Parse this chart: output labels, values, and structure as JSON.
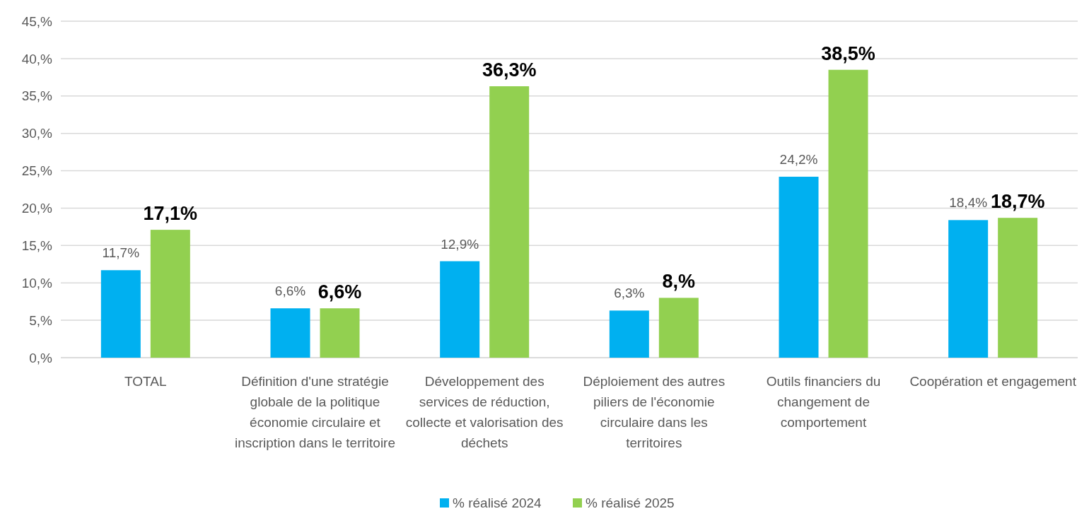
{
  "chart_data": {
    "type": "bar",
    "categories": [
      "TOTAL",
      "Définition d'une stratégie globale de la politique économie circulaire et inscription dans le territoire",
      "Développement des services de réduction, collecte et valorisation des déchets",
      "Déploiement des autres piliers de l'économie circulaire dans les territoires",
      "Outils financiers du changement de comportement",
      "Coopération et engagement"
    ],
    "series": [
      {
        "name": "% réalisé 2024",
        "color": "#00b0f0",
        "values": [
          11.7,
          6.6,
          12.9,
          6.3,
          24.2,
          18.4
        ],
        "value_labels": [
          "11,7%",
          "6,6%",
          "12,9%",
          "6,3%",
          "24,2%",
          "18,4%"
        ]
      },
      {
        "name": "% réalisé 2025",
        "color": "#92d050",
        "values": [
          17.1,
          6.6,
          36.3,
          8,
          38.5,
          18.7
        ],
        "value_labels": [
          "17,1%",
          "6,6%",
          "36,3%",
          "8,%",
          "38,5%",
          "18,7%"
        ]
      }
    ],
    "ylim": [
      0,
      45
    ],
    "yticks": [
      {
        "value": 0,
        "label": "0,%"
      },
      {
        "value": 5,
        "label": "5,%"
      },
      {
        "value": 10,
        "label": "10,%"
      },
      {
        "value": 15,
        "label": "15,%"
      },
      {
        "value": 20,
        "label": "20,%"
      },
      {
        "value": 25,
        "label": "25,%"
      },
      {
        "value": 30,
        "label": "30,%"
      },
      {
        "value": 35,
        "label": "35,%"
      },
      {
        "value": 40,
        "label": "40,%"
      },
      {
        "value": 45,
        "label": "45,%"
      }
    ],
    "grid": "y",
    "legend": "bottom"
  }
}
